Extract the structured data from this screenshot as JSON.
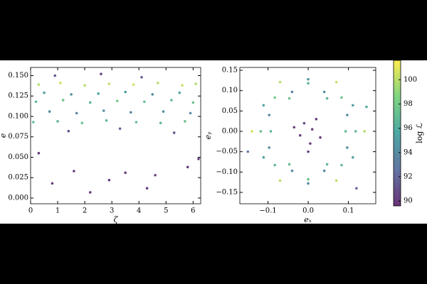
{
  "chart_data": [
    {
      "type": "scatter",
      "xlabel": "ζ",
      "ylabel": "e",
      "xlim": [
        0,
        6.28
      ],
      "ylim": [
        -0.007,
        0.16
      ],
      "xticks": [
        0,
        1,
        2,
        3,
        4,
        5,
        6
      ],
      "yticks": [
        {
          "value": 0,
          "label": "0.000"
        },
        {
          "value": 0.025,
          "label": "0.025"
        },
        {
          "value": 0.05,
          "label": "0.050"
        },
        {
          "value": 0.075,
          "label": "0.075"
        },
        {
          "value": 0.1,
          "label": "0.100"
        },
        {
          "value": 0.125,
          "label": "0.125"
        },
        {
          "value": 0.15,
          "label": "0.150"
        }
      ],
      "series": [
        {
          "x": [
            0.3,
            1.1,
            2.0,
            2.9,
            3.8,
            4.7,
            5.6,
            6.1,
            0.5,
            1.5,
            2.5,
            3.5,
            4.5,
            5.5,
            0.2,
            1.2,
            2.2,
            3.2,
            4.2,
            5.2,
            6.0,
            0.7,
            1.7,
            2.7,
            3.7,
            4.9,
            5.9,
            0.1,
            1.0,
            1.9,
            2.8,
            3.9,
            4.8,
            5.7,
            0.9,
            2.6,
            4.1,
            1.4,
            3.3,
            5.3,
            0.3,
            1.6,
            2.9,
            3.5,
            4.6,
            5.8,
            0.8,
            2.2,
            4.3,
            6.2
          ],
          "y": [
            0.139,
            0.141,
            0.138,
            0.14,
            0.139,
            0.141,
            0.138,
            0.14,
            0.129,
            0.127,
            0.128,
            0.13,
            0.127,
            0.129,
            0.118,
            0.12,
            0.117,
            0.119,
            0.118,
            0.12,
            0.117,
            0.106,
            0.104,
            0.107,
            0.105,
            0.106,
            0.104,
            0.093,
            0.094,
            0.092,
            0.095,
            0.093,
            0.092,
            0.094,
            0.15,
            0.152,
            0.148,
            0.082,
            0.085,
            0.08,
            0.055,
            0.033,
            0.022,
            0.031,
            0.028,
            0.038,
            0.018,
            0.007,
            0.012,
            0.048
          ],
          "c": [
            100,
            100.5,
            99.8,
            100.2,
            100.4,
            100,
            100.3,
            99.9,
            95,
            94.5,
            95.5,
            95,
            94,
            95.2,
            97,
            97.5,
            96.5,
            98,
            97.2,
            96.8,
            97.4,
            94,
            93.5,
            94.2,
            93.8,
            94.5,
            93.9,
            97,
            96.5,
            97.4,
            96.8,
            97.1,
            96.9,
            97.3,
            91,
            90.5,
            91.5,
            91,
            92,
            91.2,
            90,
            90,
            90.2,
            90,
            90.3,
            90,
            90.1,
            90,
            90,
            90
          ]
        }
      ]
    },
    {
      "type": "scatter",
      "xlabel": "eₓ",
      "ylabel": "eᵧ",
      "xlim": [
        -0.17,
        0.168
      ],
      "ylim": [
        -0.178,
        0.157
      ],
      "xticks": [
        {
          "value": -0.1,
          "label": "−0.1"
        },
        {
          "value": 0,
          "label": "0.0"
        },
        0.1
      ],
      "yticks": [
        0.15,
        {
          "value": 0.1,
          "label": "0.10"
        },
        0.05,
        {
          "value": 0,
          "label": "0.00"
        },
        {
          "value": -0.05,
          "label": "−0.05"
        },
        {
          "value": -0.1,
          "label": "−0.10"
        },
        {
          "value": -0.15,
          "label": "−0.15"
        }
      ],
      "series": [
        {
          "x": [
            0.14,
            0.07,
            -0.07,
            -0.14,
            -0.07,
            0.07,
            0.111,
            0,
            -0.111,
            -0.111,
            0,
            0.111,
            0.118,
            0.083,
            0,
            -0.083,
            -0.118,
            -0.083,
            0,
            0.083,
            0.097,
            -0.04,
            -0.097,
            0.04,
            0.04,
            -0.097,
            -0.04,
            0.097,
            0.093,
            0.047,
            -0.047,
            -0.093,
            -0.047,
            0.047,
            0.01,
            -0.02,
            0.005,
            -0.01,
            0.03,
            -0.035,
            0.0,
            0.02,
            -0.15,
            0.145,
            0.12
          ],
          "y": [
            0,
            0.121,
            0.121,
            0,
            -0.121,
            -0.121,
            0.064,
            0.128,
            0.064,
            -0.064,
            -0.128,
            -0.064,
            0,
            0.083,
            0.118,
            0.083,
            0,
            -0.083,
            -0.118,
            -0.083,
            0.04,
            0.097,
            -0.04,
            -0.097,
            0.097,
            0.04,
            -0.097,
            -0.04,
            0,
            0.081,
            0.081,
            0,
            -0.081,
            -0.081,
            0.005,
            -0.01,
            -0.03,
            0.02,
            -0.015,
            0.01,
            -0.05,
            0.03,
            -0.05,
            0.06,
            -0.14
          ],
          "c": [
            100,
            100.2,
            99.8,
            100.4,
            100,
            100.1,
            95,
            94.5,
            95.5,
            95,
            94,
            95.2,
            97,
            97.5,
            96.5,
            98,
            97.2,
            96.8,
            97.4,
            97,
            94,
            93.5,
            94.2,
            93.8,
            94.5,
            93.9,
            94,
            94.3,
            97,
            96.5,
            97.4,
            96.8,
            97.1,
            96.9,
            90,
            90.2,
            90,
            90.5,
            90,
            90.1,
            90.3,
            90,
            93,
            96,
            92
          ]
        }
      ],
      "colorbar": {
        "label": "log ℒ",
        "colormap": "viridis",
        "clim": [
          89.6,
          101.6
        ],
        "ticks": [
          90,
          92,
          94,
          96,
          98,
          100
        ]
      }
    }
  ]
}
